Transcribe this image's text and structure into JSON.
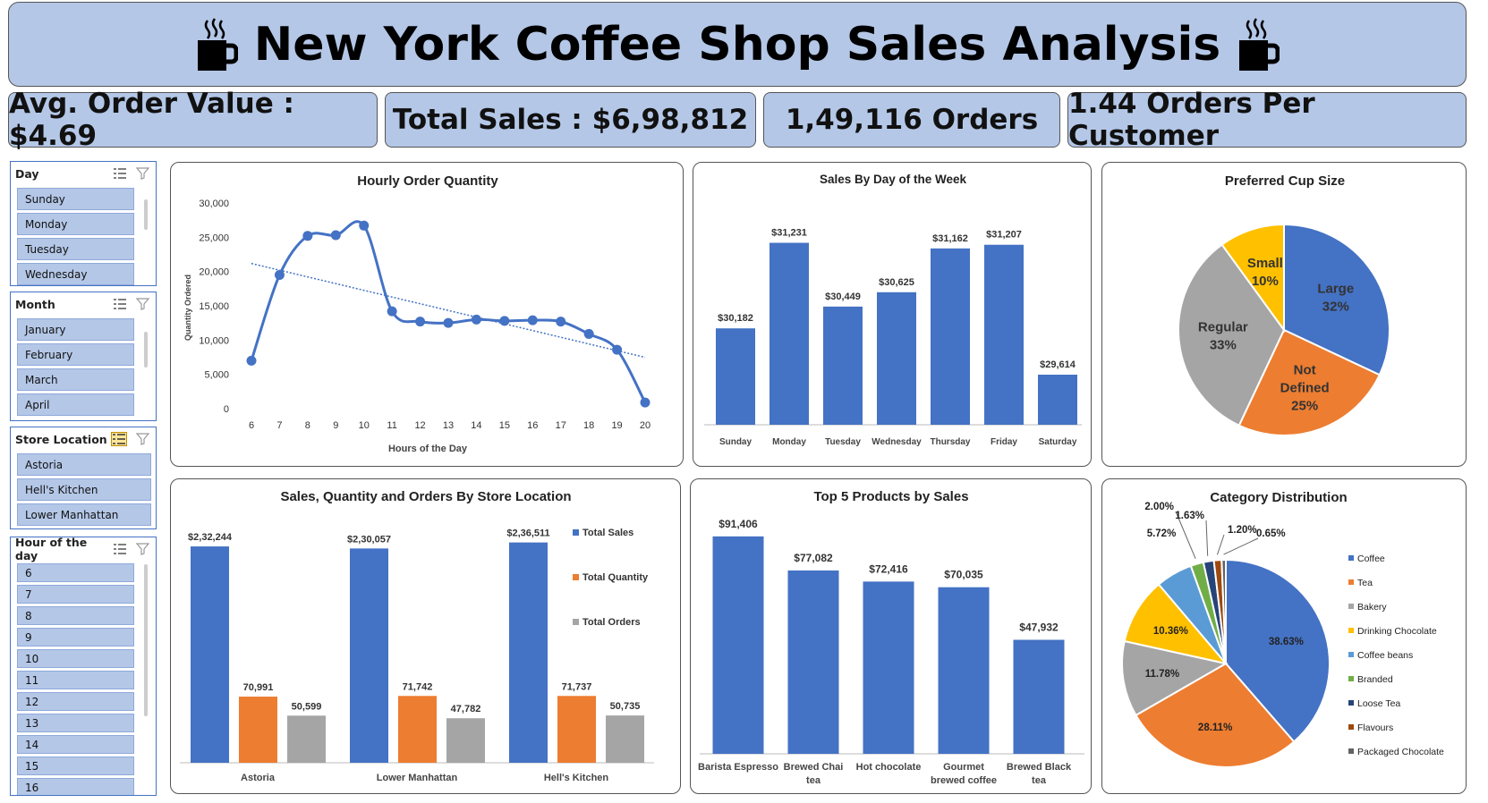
{
  "title": "New York Coffee Shop Sales Analysis",
  "kpis": {
    "avg_order_value": "Avg. Order Value : $4.69",
    "total_sales": "Total Sales : $6,98,812",
    "orders": "1,49,116 Orders",
    "orders_per_customer": "1.44 Orders Per Customer"
  },
  "slicers": {
    "day": {
      "title": "Day",
      "items": [
        "Sunday",
        "Monday",
        "Tuesday",
        "Wednesday"
      ]
    },
    "month": {
      "title": "Month",
      "items": [
        "January",
        "February",
        "March",
        "April"
      ]
    },
    "store": {
      "title": "Store Location",
      "items": [
        "Astoria",
        "Hell's Kitchen",
        "Lower Manhattan"
      ]
    },
    "hour": {
      "title": "Hour of the day",
      "items": [
        "6",
        "7",
        "8",
        "9",
        "10",
        "11",
        "12",
        "13",
        "14",
        "15",
        "16"
      ]
    }
  },
  "colors": {
    "blue": "#4472c4",
    "orange": "#ed7d31",
    "gray": "#a5a5a5",
    "yellow": "#ffc000",
    "lightblue": "#5b9bd5",
    "green": "#70ad47",
    "navy": "#264478",
    "brown": "#9e480e",
    "darkgray": "#636363",
    "header": "#b4c7e7"
  },
  "chart_data": [
    {
      "id": "hourly",
      "type": "line",
      "title": "Hourly Order Quantity",
      "xlabel": "Hours of the Day",
      "ylabel": "Quantity Ordered",
      "x": [
        "6",
        "7",
        "8",
        "9",
        "10",
        "11",
        "12",
        "13",
        "14",
        "15",
        "16",
        "17",
        "18",
        "19",
        "20"
      ],
      "values": [
        7000,
        19500,
        25200,
        25300,
        26700,
        14200,
        12700,
        12500,
        13000,
        12800,
        12900,
        12700,
        10900,
        8600,
        900
      ],
      "ylim": [
        0,
        30000
      ],
      "yticks": [
        "0",
        "5,000",
        "10,000",
        "15,000",
        "20,000",
        "25,000",
        "30,000"
      ],
      "trendline": true,
      "grid": false
    },
    {
      "id": "weekday",
      "type": "bar",
      "title": "Sales By Day of the Week",
      "categories": [
        "Sunday",
        "Monday",
        "Tuesday",
        "Wednesday",
        "Thursday",
        "Friday",
        "Saturday"
      ],
      "values": [
        30182,
        31231,
        30449,
        30625,
        31162,
        31207,
        29614
      ],
      "labels": [
        "$30,182",
        "$31,231",
        "$30,449",
        "$30,625",
        "$31,162",
        "$31,207",
        "$29,614"
      ],
      "ylim": [
        29000,
        31500
      ]
    },
    {
      "id": "cupsize",
      "type": "pie",
      "title": "Preferred Cup Size",
      "slices": [
        {
          "name": "Large",
          "value": 32,
          "label": "32%",
          "color": "#4472c4"
        },
        {
          "name": "Not Defined",
          "value": 25,
          "label": "25%",
          "color": "#ed7d31"
        },
        {
          "name": "Regular",
          "value": 33,
          "label": "33%",
          "color": "#a5a5a5"
        },
        {
          "name": "Small",
          "value": 10,
          "label": "10%",
          "color": "#ffc000"
        }
      ]
    },
    {
      "id": "store",
      "type": "bar",
      "title": "Sales,  Quantity and Orders By Store Location",
      "categories": [
        "Astoria",
        "Lower Manhattan",
        "Hell's Kitchen"
      ],
      "series": [
        {
          "name": "Total Sales",
          "values": [
            232244,
            230057,
            236511
          ],
          "labels": [
            "$2,32,244",
            "$2,30,057",
            "$2,36,511"
          ],
          "color": "#4472c4"
        },
        {
          "name": "Total Quantity",
          "values": [
            70991,
            71742,
            71737
          ],
          "labels": [
            "70,991",
            "71,742",
            "71,737"
          ],
          "color": "#ed7d31"
        },
        {
          "name": "Total Orders",
          "values": [
            50599,
            47782,
            50735
          ],
          "labels": [
            "50,599",
            "47,782",
            "50,735"
          ],
          "color": "#a5a5a5"
        }
      ]
    },
    {
      "id": "top5",
      "type": "bar",
      "title": "Top 5 Products by Sales",
      "categories": [
        "Barista Espresso",
        "Brewed Chai tea",
        "Hot chocolate",
        "Gourmet brewed coffee",
        "Brewed Black tea"
      ],
      "category_lines": [
        [
          "Barista Espresso"
        ],
        [
          "Brewed Chai",
          "tea"
        ],
        [
          "Hot chocolate"
        ],
        [
          "Gourmet",
          "brewed coffee"
        ],
        [
          "Brewed Black",
          "tea"
        ]
      ],
      "values": [
        91406,
        77082,
        72416,
        70035,
        47932
      ],
      "labels": [
        "$91,406",
        "$77,082",
        "$72,416",
        "$70,035",
        "$47,932"
      ],
      "ylim": [
        0,
        100000
      ]
    },
    {
      "id": "category",
      "type": "pie",
      "title": "Category Distribution",
      "slices": [
        {
          "name": "Coffee",
          "value": 38.63,
          "label": "38.63%",
          "color": "#4472c4"
        },
        {
          "name": "Tea",
          "value": 28.11,
          "label": "28.11%",
          "color": "#ed7d31"
        },
        {
          "name": "Bakery",
          "value": 11.78,
          "label": "11.78%",
          "color": "#a5a5a5"
        },
        {
          "name": "Drinking Chocolate",
          "value": 10.36,
          "label": "10.36%",
          "color": "#ffc000"
        },
        {
          "name": "Coffee beans",
          "value": 5.72,
          "label": "5.72%",
          "color": "#5b9bd5"
        },
        {
          "name": "Branded",
          "value": 2.0,
          "label": "2.00%",
          "color": "#70ad47"
        },
        {
          "name": "Loose Tea",
          "value": 1.63,
          "label": "1.63%",
          "color": "#264478"
        },
        {
          "name": "Flavours",
          "value": 1.2,
          "label": "1.20%",
          "color": "#9e480e"
        },
        {
          "name": "Packaged Chocolate",
          "value": 0.65,
          "label": "0.65%",
          "color": "#636363"
        }
      ]
    }
  ]
}
